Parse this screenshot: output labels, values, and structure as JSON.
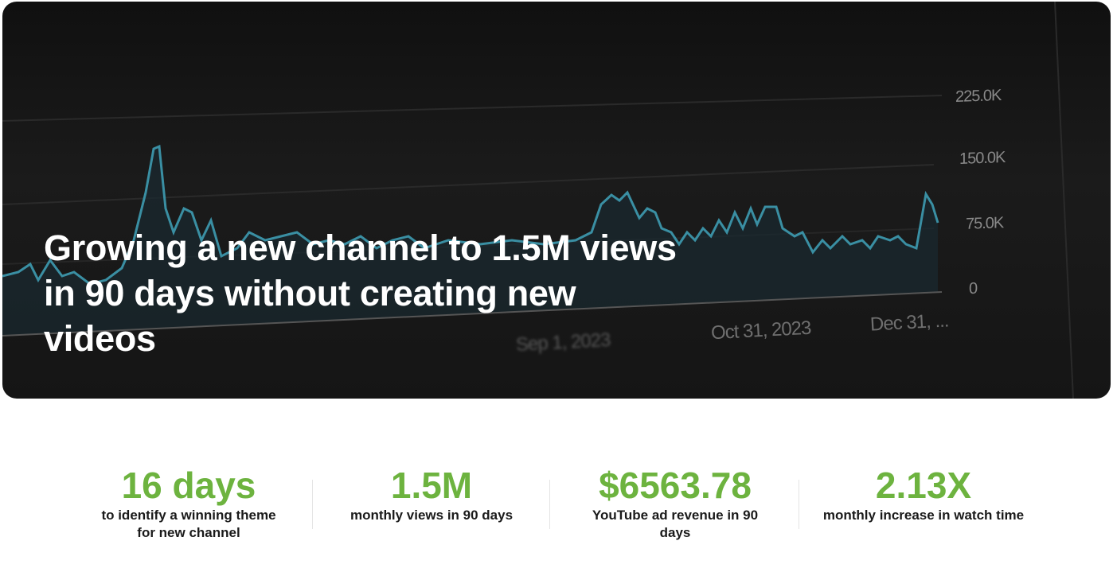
{
  "hero": {
    "title": "Growing a new channel to 1.5M views in 90 days without creating new videos",
    "background_chart": {
      "y_ticks": [
        "225.0K",
        "150.0K",
        "75.0K",
        "0"
      ],
      "x_ticks": [
        "Sep 1, 2023",
        "Oct 31, 2023",
        "Dec 31, ..."
      ],
      "line_color": "#3a8fa3"
    }
  },
  "stats": [
    {
      "value": "16 days",
      "label": "to identify a winning theme for new channel"
    },
    {
      "value": "1.5M",
      "label": "monthly views in 90 days"
    },
    {
      "value": "$6563.78",
      "label": "YouTube ad revenue in 90 days"
    },
    {
      "value": "2.13X",
      "label": "monthly increase in watch time"
    }
  ],
  "accent_color": "#6db33f"
}
